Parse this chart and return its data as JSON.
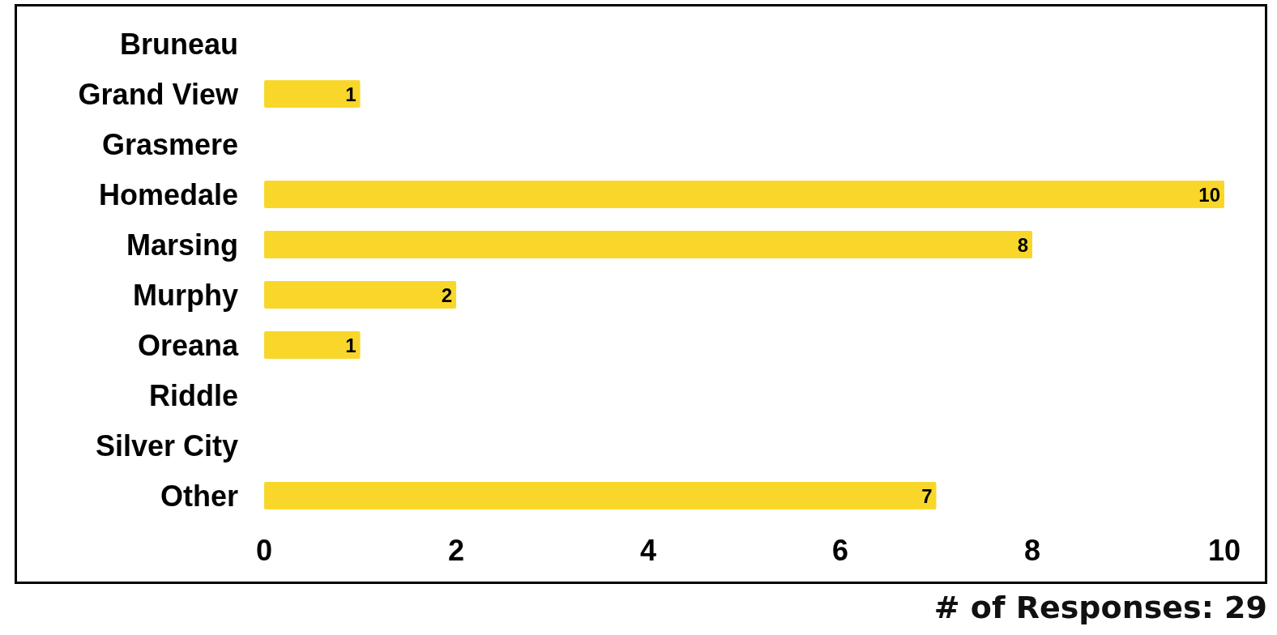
{
  "chart_data": {
    "type": "bar",
    "orientation": "horizontal",
    "categories": [
      "Bruneau",
      "Grand View",
      "Grasmere",
      "Homedale",
      "Marsing",
      "Murphy",
      "Oreana",
      "Riddle",
      "Silver City",
      "Other"
    ],
    "values": [
      0,
      1,
      0,
      10,
      8,
      2,
      1,
      0,
      0,
      7
    ],
    "value_labels": [
      null,
      "1",
      null,
      "10",
      "8",
      "2",
      "1",
      null,
      null,
      "7"
    ],
    "color": "#f9d72a",
    "xlim": [
      0,
      10
    ],
    "xticks": [
      0,
      2,
      4,
      6,
      8,
      10
    ],
    "grid": false,
    "annotations": [
      "# of Responses: 29"
    ]
  }
}
